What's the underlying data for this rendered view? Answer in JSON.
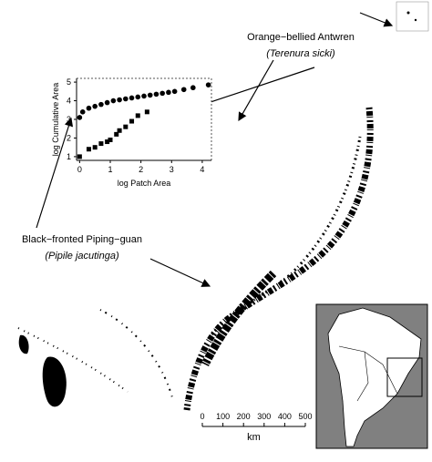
{
  "chart_data": {
    "type": "scatter",
    "xlabel": "log Patch Area",
    "ylabel": "log Cumulative Area",
    "xlim": [
      -0.1,
      4.3
    ],
    "ylim": [
      0.8,
      5.2
    ],
    "xticks": [
      0,
      1,
      2,
      3,
      4
    ],
    "yticks": [
      1,
      2,
      3,
      4,
      5
    ],
    "series": [
      {
        "marker": "circle",
        "color": "#000000",
        "x": [
          0,
          0.1,
          0.3,
          0.5,
          0.7,
          0.9,
          1.1,
          1.3,
          1.5,
          1.7,
          1.9,
          2.1,
          2.3,
          2.5,
          2.7,
          2.9,
          3.1,
          3.4,
          3.7,
          4.2
        ],
        "values": [
          3.1,
          3.4,
          3.6,
          3.7,
          3.8,
          3.9,
          4.0,
          4.05,
          4.1,
          4.15,
          4.2,
          4.25,
          4.3,
          4.35,
          4.4,
          4.45,
          4.5,
          4.6,
          4.7,
          4.85
        ]
      },
      {
        "marker": "square",
        "color": "#000000",
        "x": [
          0,
          0.3,
          0.5,
          0.7,
          0.9,
          1.0,
          1.2,
          1.3,
          1.5,
          1.7,
          1.9,
          2.2
        ],
        "values": [
          1.0,
          1.4,
          1.5,
          1.7,
          1.8,
          1.9,
          2.2,
          2.4,
          2.6,
          2.9,
          3.2,
          3.4
        ]
      }
    ]
  },
  "species": [
    {
      "common": "Orange−bellied Antwren",
      "latin": "(Terenura sicki)"
    },
    {
      "common": "Black−fronted Piping−guan",
      "latin": "(Pipile jacutinga)"
    }
  ],
  "scale_bar": {
    "ticks": [
      0,
      100,
      200,
      300,
      400,
      500
    ],
    "unit": "km"
  }
}
